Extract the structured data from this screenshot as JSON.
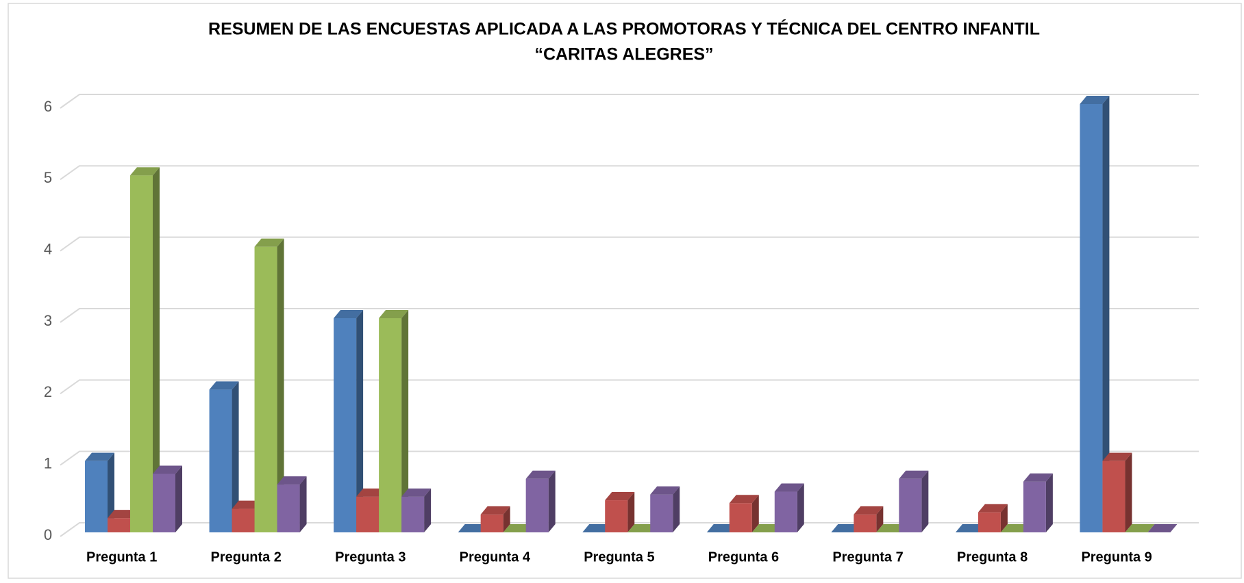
{
  "chart_data": {
    "type": "bar3d",
    "title": "RESUMEN DE LAS ENCUESTAS APLICADA A LAS PROMOTORAS Y TÉCNICA DEL CENTRO INFANTIL",
    "subtitle": "“CARITAS ALEGRES”",
    "categories": [
      "Pregunta 1",
      "Pregunta 2",
      "Pregunta 3",
      "Pregunta 4",
      "Pregunta 5",
      "Pregunta 6",
      "Pregunta 7",
      "Pregunta 8",
      "Pregunta 9"
    ],
    "series": [
      {
        "color": "#4f81bd",
        "values": [
          1,
          2,
          3,
          0,
          0,
          0,
          0,
          0,
          6
        ]
      },
      {
        "color": "#c0504d",
        "values": [
          0.2,
          0.33,
          0.5,
          0.25,
          0.45,
          0.41,
          0.25,
          0.28,
          1
        ]
      },
      {
        "color": "#9bbb59",
        "values": [
          5,
          4,
          3,
          0,
          0,
          0,
          0,
          0,
          0
        ]
      },
      {
        "color": "#8064a2",
        "values": [
          0.82,
          0.67,
          0.5,
          0.75,
          0.53,
          0.57,
          0.75,
          0.71,
          0
        ]
      }
    ],
    "ylim": [
      0,
      6
    ],
    "yticks": [
      0,
      1,
      2,
      3,
      4,
      5,
      6
    ],
    "grid": true
  }
}
